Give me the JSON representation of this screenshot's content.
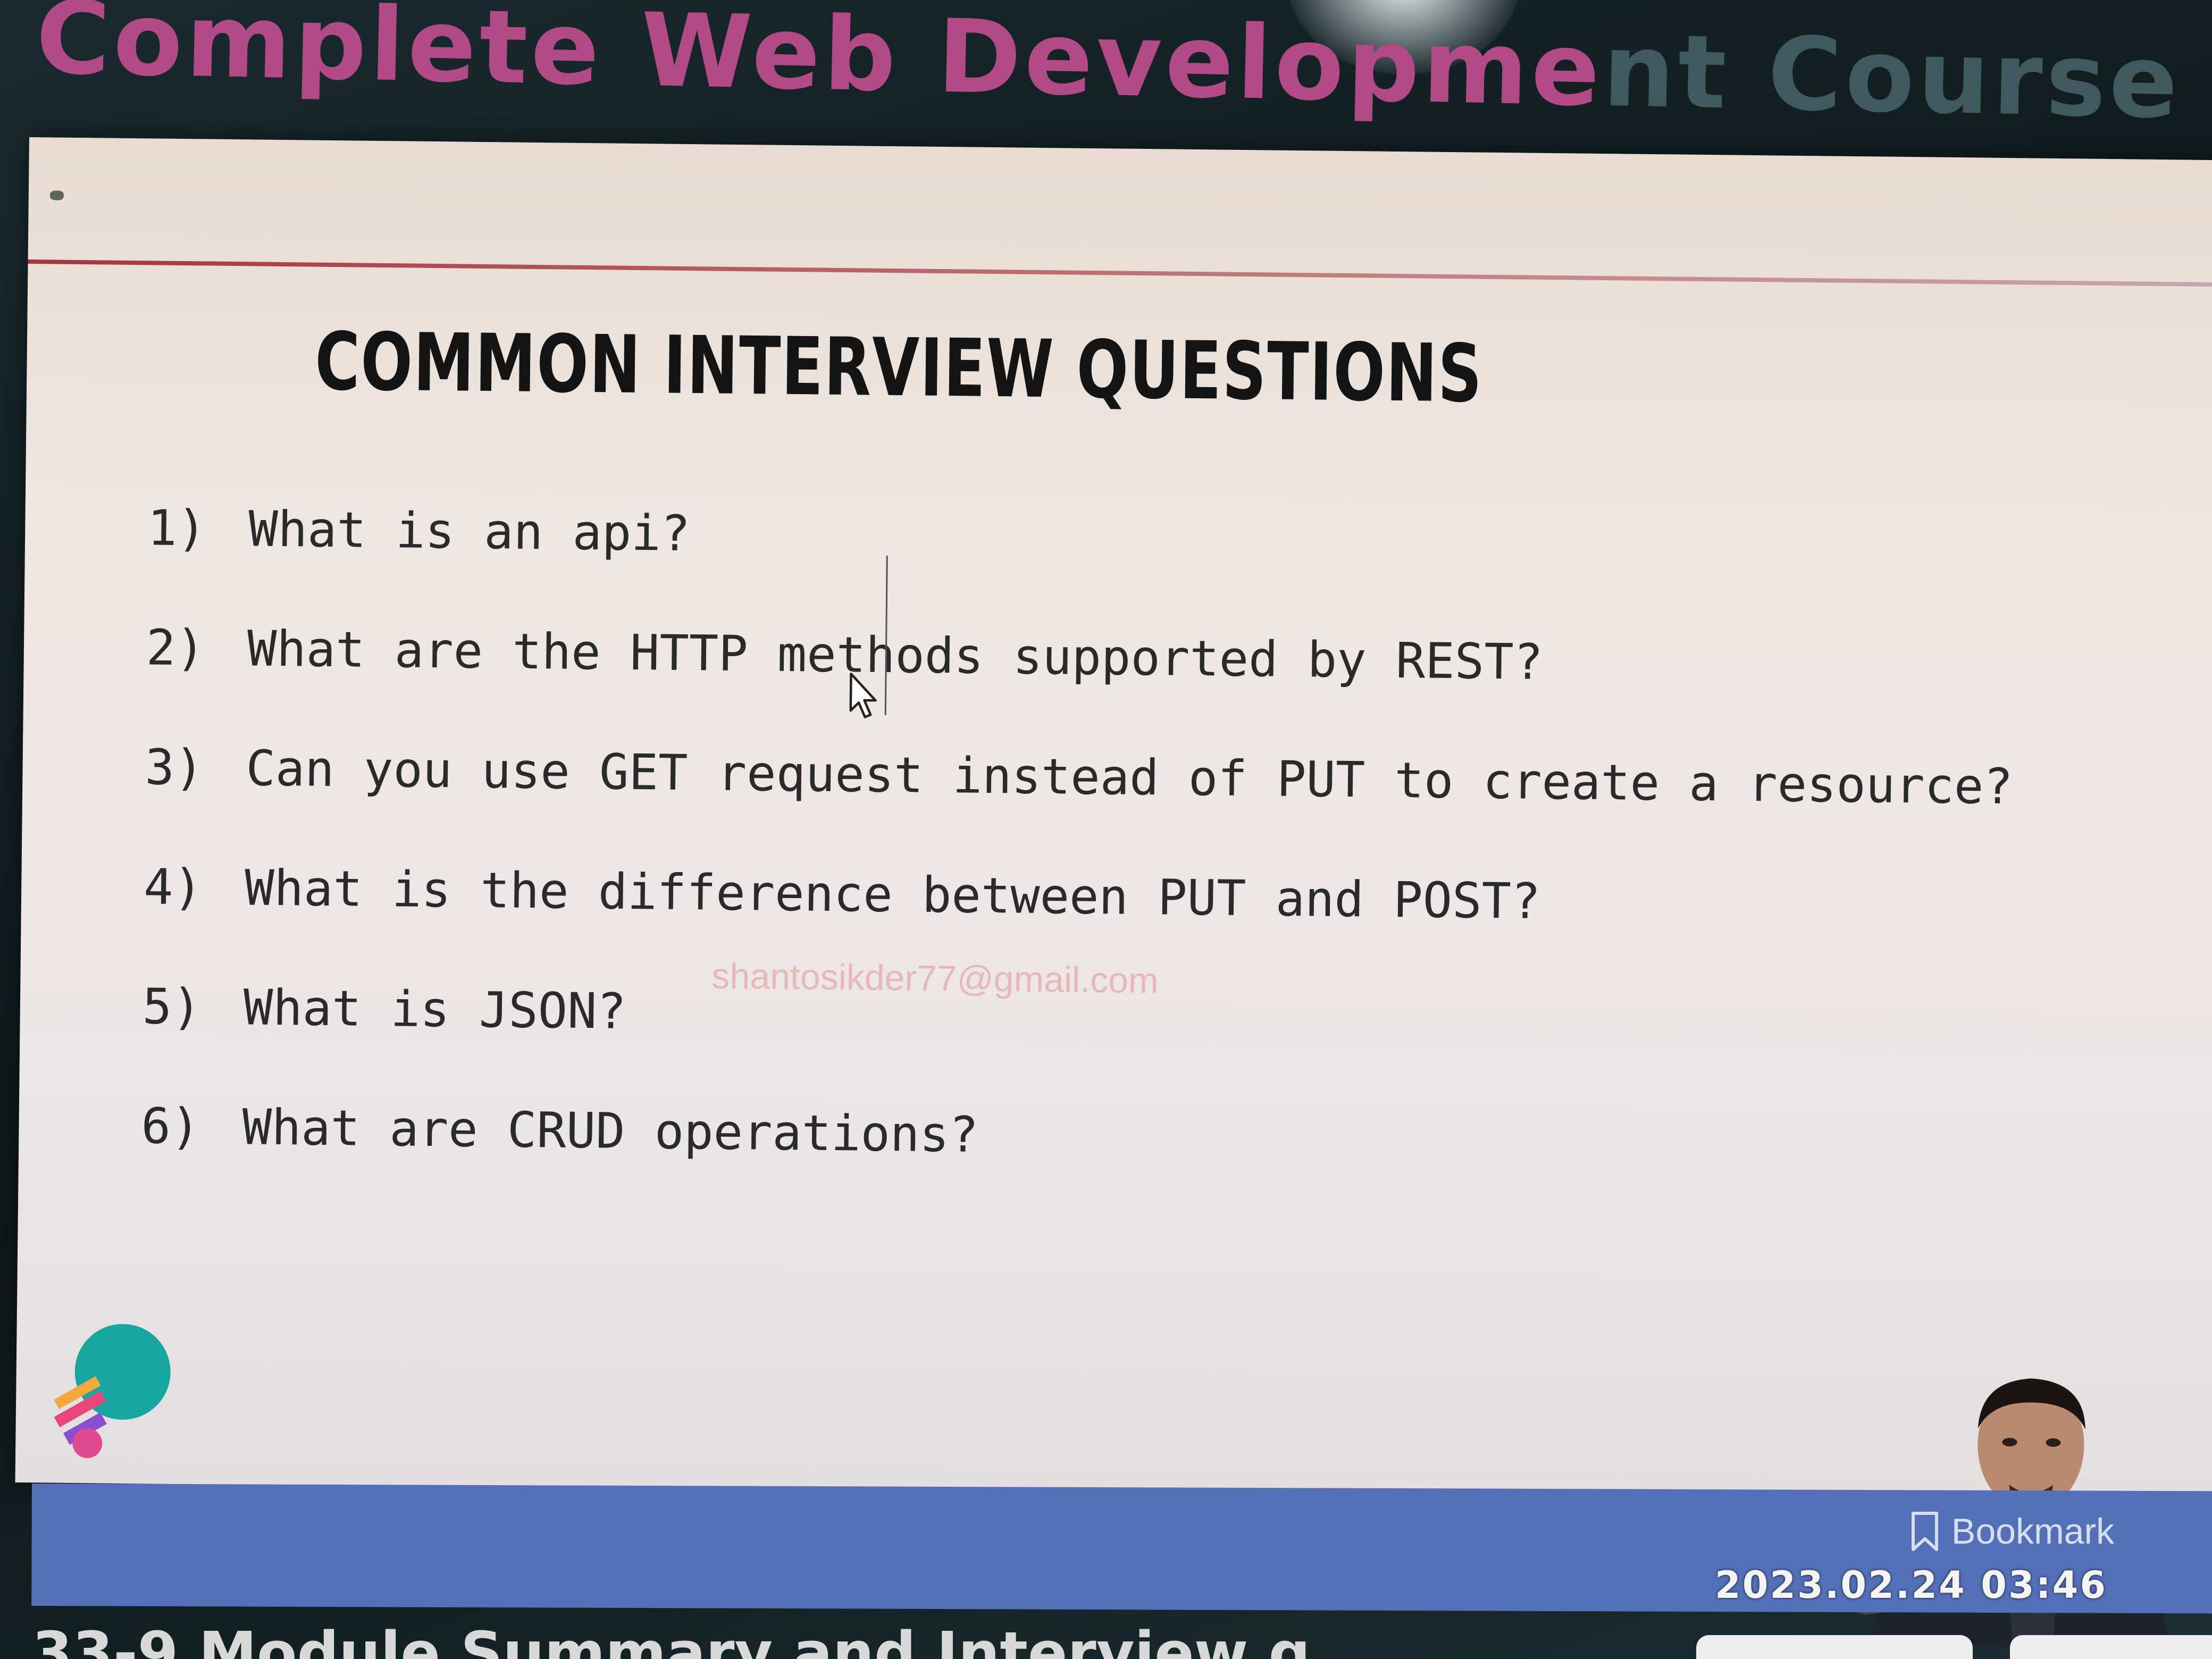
{
  "header": {
    "course_title_main": "Complete Web Developme",
    "course_title_faded": "nt Course With Jhan"
  },
  "slide": {
    "heading": "COMMON INTERVIEW QUESTIONS",
    "questions": [
      {
        "num": "1)",
        "text": "What is an api?"
      },
      {
        "num": "2)",
        "text": "What are the HTTP methods supported by REST?"
      },
      {
        "num": "3)",
        "text": "Can you use GET request instead of PUT to create a resource?"
      },
      {
        "num": "4)",
        "text": "What is the difference between PUT and POST?"
      },
      {
        "num": "5)",
        "text": "What is JSON?"
      },
      {
        "num": "6)",
        "text": "What are CRUD operations?"
      }
    ],
    "watermark": "shantosikder77@gmail.com"
  },
  "player": {
    "bookmark_label": "Bookmark",
    "timestamp": "2023.02.24 03:46",
    "lesson_title": "33-9 Module Summary and Interview q",
    "accent_color": "#5470b8"
  },
  "icons": {
    "bookmark": "bookmark-icon",
    "cursor": "mouse-cursor-icon",
    "logo": "brand-logo-icon"
  }
}
